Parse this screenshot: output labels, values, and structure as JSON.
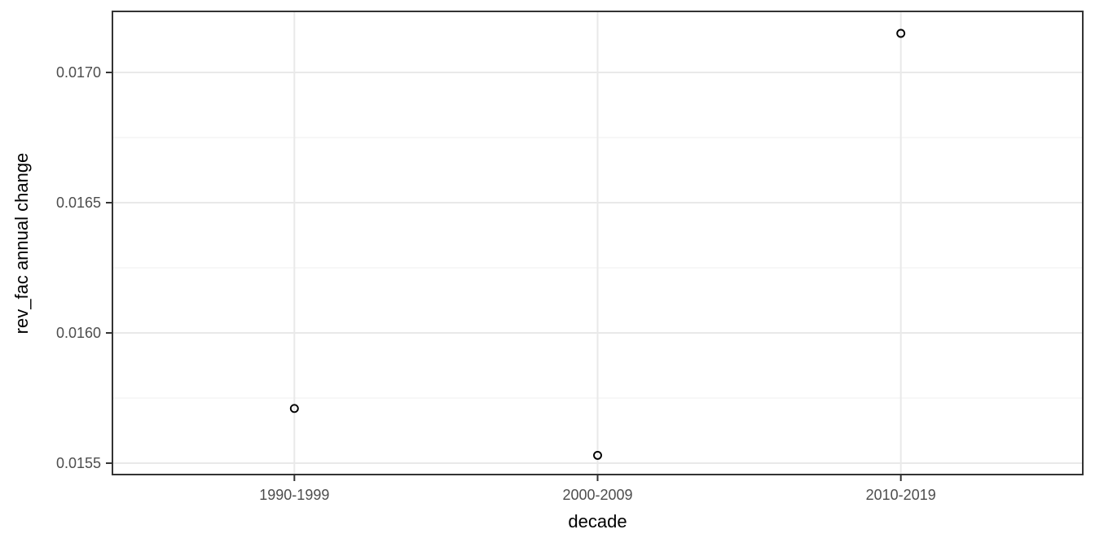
{
  "chart_data": {
    "type": "scatter",
    "title": "",
    "xlabel": "decade",
    "ylabel": "rev_fac annual change",
    "categories": [
      "1990-1999",
      "2000-2009",
      "2010-2019"
    ],
    "values": [
      0.01571,
      0.01553,
      0.01715
    ],
    "ylim": [
      0.0154563,
      0.0172344
    ],
    "yticks": [
      0.0155,
      0.016,
      0.0165,
      0.017
    ],
    "ytick_labels": [
      "0.0155",
      "0.0160",
      "0.0165",
      "0.0170"
    ],
    "yminor_ticks": [
      0.01575,
      0.01625,
      0.01675
    ],
    "grid": "major-and-minor",
    "legend_position": "none",
    "marker": "open-circle",
    "theme": "ggplot-bw"
  },
  "colors": {
    "figure_background": "#ffffff",
    "panel_background": "#ffffff",
    "panel_border": "#333333",
    "grid_major": "#e9e9e9",
    "grid_minor": "#f2f2f2",
    "tick_mark": "#333333",
    "tick_label": "#4d4d4d",
    "axis_title": "#000000",
    "point_stroke": "#000000"
  }
}
